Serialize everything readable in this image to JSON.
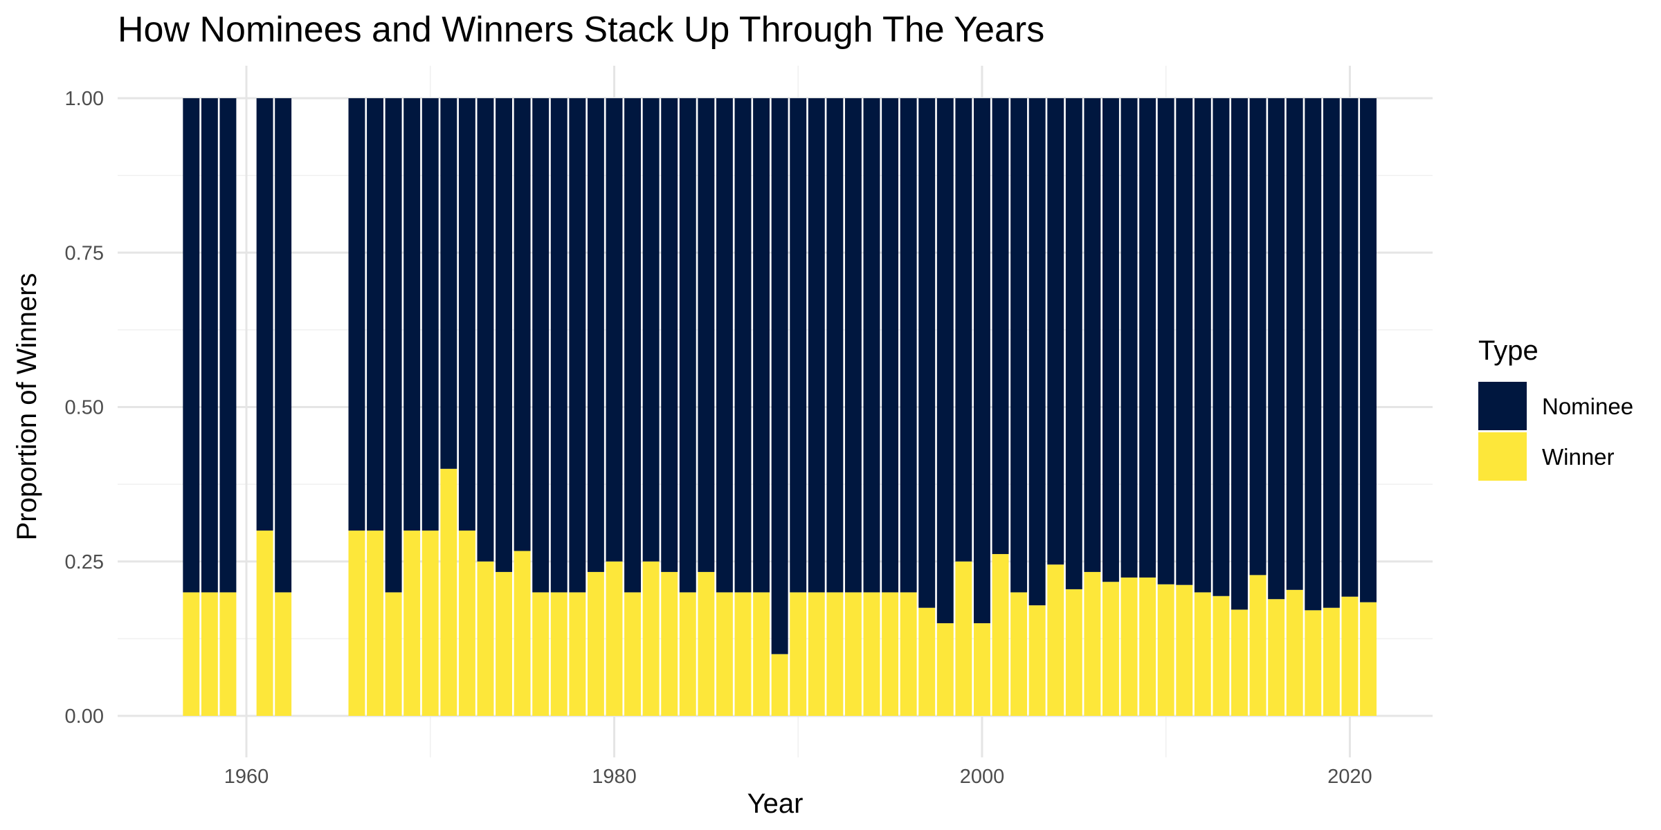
{
  "chart_data": {
    "type": "bar",
    "stacked": true,
    "title": "How Nominees and Winners Stack Up Through The Years",
    "xlabel": "Year",
    "ylabel": "Proportion of Winners",
    "xlim": [
      1953,
      2024.5
    ],
    "ylim": [
      0,
      1
    ],
    "x_ticks": [
      1960,
      1980,
      2000,
      2020
    ],
    "y_ticks": [
      0,
      0.25,
      0.5,
      0.75,
      1
    ],
    "y_tick_labels": [
      "0.00",
      "0.25",
      "0.50",
      "0.75",
      "1.00"
    ],
    "grid": true,
    "legend": {
      "title": "Type",
      "position": "right",
      "entries": [
        {
          "label": "Nominee",
          "color": "#00173F"
        },
        {
          "label": "Winner",
          "color": "#FDE73A"
        }
      ]
    },
    "colors": {
      "Nominee": "#00173F",
      "Winner": "#FDE73A"
    },
    "x": [
      1957,
      1958,
      1959,
      1961,
      1962,
      1966,
      1967,
      1968,
      1969,
      1970,
      1971,
      1972,
      1973,
      1974,
      1975,
      1976,
      1977,
      1978,
      1979,
      1980,
      1981,
      1982,
      1983,
      1984,
      1985,
      1986,
      1987,
      1988,
      1989,
      1990,
      1991,
      1992,
      1993,
      1994,
      1995,
      1996,
      1997,
      1998,
      1999,
      2000,
      2001,
      2002,
      2003,
      2004,
      2005,
      2006,
      2007,
      2008,
      2009,
      2010,
      2011,
      2012,
      2013,
      2014,
      2015,
      2016,
      2017,
      2018,
      2019,
      2020,
      2021
    ],
    "series": [
      {
        "name": "Winner",
        "values": [
          0.2,
          0.2,
          0.2,
          0.3,
          0.2,
          0.3,
          0.3,
          0.2,
          0.3,
          0.3,
          0.4,
          0.3,
          0.25,
          0.233,
          0.267,
          0.2,
          0.2,
          0.2,
          0.233,
          0.25,
          0.2,
          0.25,
          0.233,
          0.2,
          0.233,
          0.2,
          0.2,
          0.2,
          0.1,
          0.2,
          0.2,
          0.2,
          0.2,
          0.2,
          0.2,
          0.2,
          0.175,
          0.15,
          0.25,
          0.15,
          0.262,
          0.2,
          0.179,
          0.245,
          0.205,
          0.233,
          0.217,
          0.224,
          0.224,
          0.213,
          0.212,
          0.2,
          0.194,
          0.172,
          0.228,
          0.189,
          0.204,
          0.171,
          0.175,
          0.193,
          0.184
        ]
      },
      {
        "name": "Nominee",
        "values": [
          0.8,
          0.8,
          0.8,
          0.7,
          0.8,
          0.7,
          0.7,
          0.8,
          0.7,
          0.7,
          0.6,
          0.7,
          0.75,
          0.767,
          0.733,
          0.8,
          0.8,
          0.8,
          0.767,
          0.75,
          0.8,
          0.75,
          0.767,
          0.8,
          0.767,
          0.8,
          0.8,
          0.8,
          0.9,
          0.8,
          0.8,
          0.8,
          0.8,
          0.8,
          0.8,
          0.8,
          0.825,
          0.85,
          0.75,
          0.85,
          0.738,
          0.8,
          0.821,
          0.755,
          0.795,
          0.767,
          0.783,
          0.776,
          0.776,
          0.787,
          0.788,
          0.8,
          0.806,
          0.828,
          0.772,
          0.811,
          0.796,
          0.829,
          0.825,
          0.807,
          0.816
        ]
      }
    ]
  }
}
